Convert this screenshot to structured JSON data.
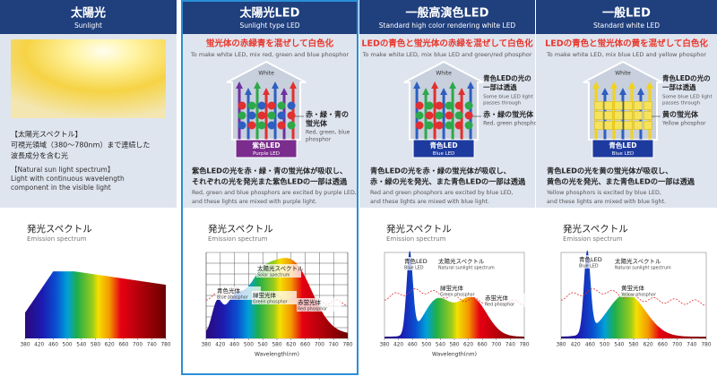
{
  "columns": [
    {
      "title": "太陽光",
      "subtitle": "Sunlight",
      "description": [
        "【太陽光スペクトル】",
        "可視光領域（380～780nm）まで連続した",
        "波長成分を含む光"
      ],
      "description_en": [
        "【Natural sun light spectrum】",
        "Light with continuous wavelength",
        "component in the visible light"
      ],
      "spectrum": {
        "title": "発光スペクトル",
        "subtitle": "Emission spectrum",
        "ticks": [
          380,
          420,
          460,
          500,
          540,
          580,
          620,
          660,
          700,
          740,
          780
        ],
        "annotations": []
      }
    },
    {
      "title": "太陽光LED",
      "subtitle": "Sunlight type LED",
      "headline": "蛍光体の赤緑青を混ぜして白色化",
      "headline_en": "To make white LED, mix red, green and blue phosphor",
      "diagram": {
        "top": "White",
        "phosphor_ja": [
          "赤・緑・青の",
          "蛍光体"
        ],
        "phosphor_en": [
          "Red, green, blue",
          "phosphor"
        ],
        "led_ja": "紫色LED",
        "led_en": "Purple LED"
      },
      "description": [
        "紫色LEDの光を赤・緑・青の蛍光体が吸収し、",
        "それぞれの光を発光また紫色LEDの一部は透過"
      ],
      "description_en": [
        "Red, green and blue phosphors are excited by purple LED,",
        "and these lights are mixed with purple light."
      ],
      "spectrum": {
        "title": "発光スペクトル",
        "subtitle": "Emission spectrum",
        "ticks": [
          380,
          420,
          460,
          500,
          540,
          580,
          620,
          660,
          700,
          740,
          780
        ],
        "axis_label": "Wavelength(nm)",
        "annotations": [
          {
            "ja": "青色光体",
            "en": "Blue phosphor"
          },
          {
            "ja": "太陽光スペクトル",
            "en": "Solar spectrum"
          },
          {
            "ja": "緑蛍光体",
            "en": "Green phosphor"
          },
          {
            "ja": "赤蛍光体",
            "en": "Red phosphor"
          }
        ]
      }
    },
    {
      "title": "一般高演色LED",
      "subtitle": "Standard high color rendering white LED",
      "headline": "LEDの青色と蛍光体の赤緑を混ぜして白色化",
      "headline_en": "To make white LED, mix blue LED and green/red phosphor",
      "diagram": {
        "top": "White",
        "pass_ja": [
          "青色LEDの光の",
          "一部は透過"
        ],
        "pass_en": [
          "Some blue LED light",
          "passes through"
        ],
        "phosphor_ja": [
          "赤・緑の蛍光体"
        ],
        "phosphor_en": [
          "Red, green phosphor"
        ],
        "led_ja": "青色LED",
        "led_en": "Blue LED"
      },
      "description": [
        "青色LEDの光を赤・緑の蛍光体が吸収し、",
        "赤・緑の光を発光、また青色LEDの一部は透過"
      ],
      "description_en": [
        "Red and green phosphors are excited by blue LED,",
        "and these lights are mixed with blue light."
      ],
      "spectrum": {
        "title": "発光スペクトル",
        "subtitle": "Emission spectrum",
        "ticks": [
          380,
          420,
          460,
          500,
          540,
          580,
          620,
          660,
          700,
          740,
          780
        ],
        "axis_label": "Wavelength(nm)",
        "annotations": [
          {
            "ja": "青色LED",
            "en": "Blue LED"
          },
          {
            "ja": "太陽光スペクトル",
            "en": "Natural sunlight spectrum"
          },
          {
            "ja": "緑蛍光体",
            "en": "Green phosphor"
          },
          {
            "ja": "赤蛍光体",
            "en": "Red phosphor"
          }
        ]
      }
    },
    {
      "title": "一般LED",
      "subtitle": "Standard white LED",
      "headline": "LEDの青色と蛍光体の黄を混ぜして白色化",
      "headline_en": "To make white LED, mix blue LED and yellow phosphor",
      "diagram": {
        "top": "White",
        "pass_ja": [
          "青色LEDの光の",
          "一部は透過"
        ],
        "pass_en": [
          "Some blue LED light",
          "passes through"
        ],
        "phosphor_ja": [
          "黄の蛍光体"
        ],
        "phosphor_en": [
          "Yellow phosphor"
        ],
        "led_ja": "青色LED",
        "led_en": "Blue LED"
      },
      "description": [
        "青色LEDの光を黄の蛍光体が吸収し、",
        "黄色の光を発光、また青色LEDの一部は透過"
      ],
      "description_en": [
        "Yellow phosphors is excited by blue LED,",
        "and these lights are mixed with blue light."
      ],
      "spectrum": {
        "title": "発光スペクトル",
        "subtitle": "Emission spectrum",
        "ticks": [
          380,
          420,
          460,
          500,
          540,
          580,
          620,
          660,
          700,
          740,
          780
        ],
        "annotations": [
          {
            "ja": "青色LED",
            "en": "Blue LED"
          },
          {
            "ja": "太陽光スペクトル",
            "en": "Natural sunlight spectrum"
          },
          {
            "ja": "黄蛍光体",
            "en": "Yellow phosphor"
          }
        ]
      }
    }
  ]
}
